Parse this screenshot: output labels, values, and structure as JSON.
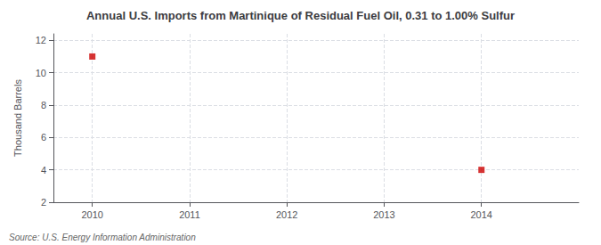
{
  "chart_data": {
    "type": "scatter",
    "title": "Annual U.S. Imports from Martinique of Residual Fuel Oil, 0.31 to 1.00% Sulfur",
    "ylabel": "Thousand Barrels",
    "source": "Source: U.S. Energy Information Administration",
    "x": [
      2010,
      2014
    ],
    "values": [
      11,
      4
    ],
    "color": "#cc0000",
    "marker": "square",
    "xlim": [
      2009.6,
      2015
    ],
    "ylim": [
      2,
      12.4
    ],
    "xticks": [
      2010,
      2011,
      2012,
      2013,
      2014
    ],
    "yticks": [
      2,
      4,
      6,
      8,
      10,
      12
    ],
    "grid": true
  }
}
